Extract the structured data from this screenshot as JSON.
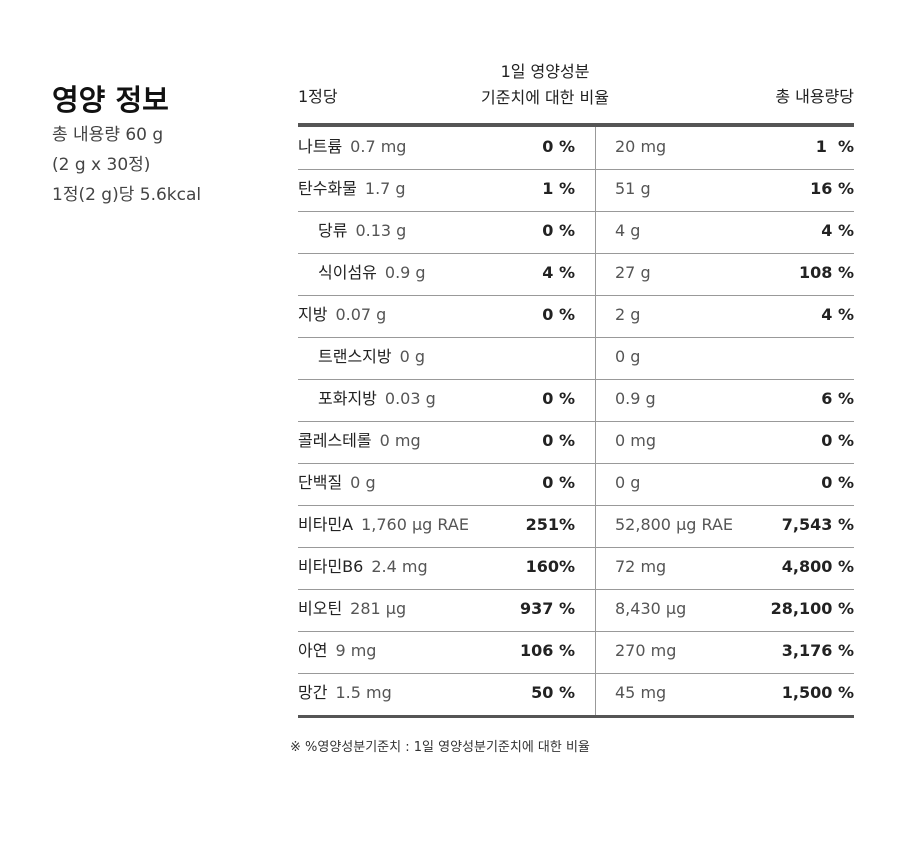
{
  "header": {
    "title": "영양 정보",
    "info": [
      "총 내용량 60 g",
      "(2 g x 30정)",
      "1정(2 g)당 5.6kcal"
    ]
  },
  "table": {
    "columns": {
      "per_unit": "1정당",
      "daily": [
        "1일 영양성분",
        "기준치에 대한 비율"
      ],
      "total": "총 내용량당"
    },
    "rows": [
      [
        "나트륨",
        "0.7 mg",
        "0 %",
        "20 mg",
        "1  %"
      ],
      [
        "탄수화물",
        "1.7 g",
        "1 %",
        "51 g",
        "16 %"
      ],
      [
        "당류",
        "0.13 g",
        "0 %",
        "4 g",
        "4 %"
      ],
      [
        "식이섬유",
        "0.9 g",
        "4 %",
        "27 g",
        "108 %"
      ],
      [
        "지방",
        "0.07 g",
        "0 %",
        "2 g",
        "4 %"
      ],
      [
        "트랜스지방",
        "0 g",
        null,
        "0 g",
        null
      ],
      [
        "포화지방",
        "0.03 g",
        "0 %",
        "0.9 g",
        "6 %"
      ],
      [
        "콜레스테롤",
        "0 mg",
        "0 %",
        "0 mg",
        "0 %"
      ],
      [
        "단백질",
        "0 g",
        "0 %",
        "0 g",
        "0 %"
      ],
      [
        "비타민A",
        "1,760 µg RAE",
        "251%",
        "52,800 µg RAE",
        "7,543 %"
      ],
      [
        "비타민B6",
        "2.4 mg",
        "160%",
        "72 mg",
        "4,800 %"
      ],
      [
        "비오틴",
        "281 µg",
        "937 %",
        "8,430 µg",
        "28,100 %"
      ],
      [
        "아연",
        "9 mg",
        "106 %",
        "270 mg",
        "3,176 %"
      ],
      [
        "망간",
        "1.5 mg",
        "50 %",
        "45 mg",
        "1,500 %"
      ]
    ]
  },
  "footnote": "※ %영양성분기준치 : 1일 영양성분기준치에 대한 비율"
}
